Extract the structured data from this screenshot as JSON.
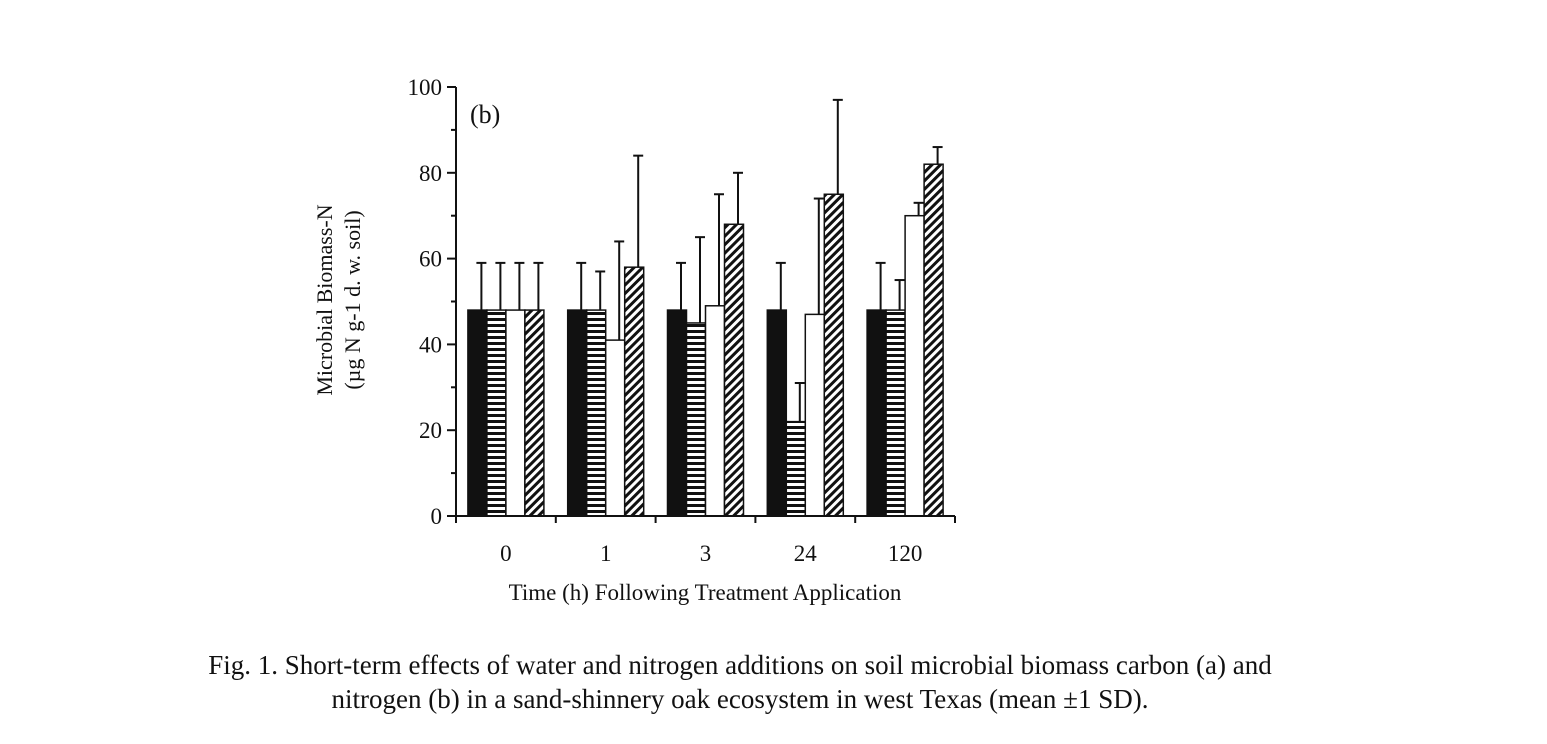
{
  "chart_data": {
    "type": "bar",
    "panel_label": "(b)",
    "xlabel": "Time (h) Following Treatment Application",
    "ylabel_line1": "Microbial Biomass-N",
    "ylabel_line2": "(µg N g-1 d. w. soil)",
    "categories": [
      "0",
      "1",
      "3",
      "24",
      "120"
    ],
    "ylim": [
      0,
      100
    ],
    "yticks": [
      "0",
      "20",
      "40",
      "60",
      "80",
      "100"
    ],
    "series": [
      {
        "values": [
          48,
          48,
          48,
          48,
          48
        ],
        "sd": [
          11,
          11,
          11,
          11,
          11
        ],
        "pattern": "solid-black"
      },
      {
        "values": [
          48,
          48,
          45,
          22,
          48
        ],
        "sd": [
          11,
          9,
          20,
          9,
          7
        ],
        "pattern": "horizontal-stripes"
      },
      {
        "values": [
          48,
          41,
          49,
          47,
          70
        ],
        "sd": [
          11,
          23,
          26,
          27,
          3
        ],
        "pattern": "open-white"
      },
      {
        "values": [
          48,
          58,
          68,
          75,
          82
        ],
        "sd": [
          11,
          26,
          12,
          22,
          4
        ],
        "pattern": "diagonal-hatch"
      }
    ]
  },
  "caption": {
    "line1": "Fig. 1. Short-term effects of water and nitrogen additions on soil microbial biomass carbon (a) and",
    "line2": "nitrogen (b) in a sand-shinnery oak ecosystem in west Texas (mean ±1 SD)."
  }
}
